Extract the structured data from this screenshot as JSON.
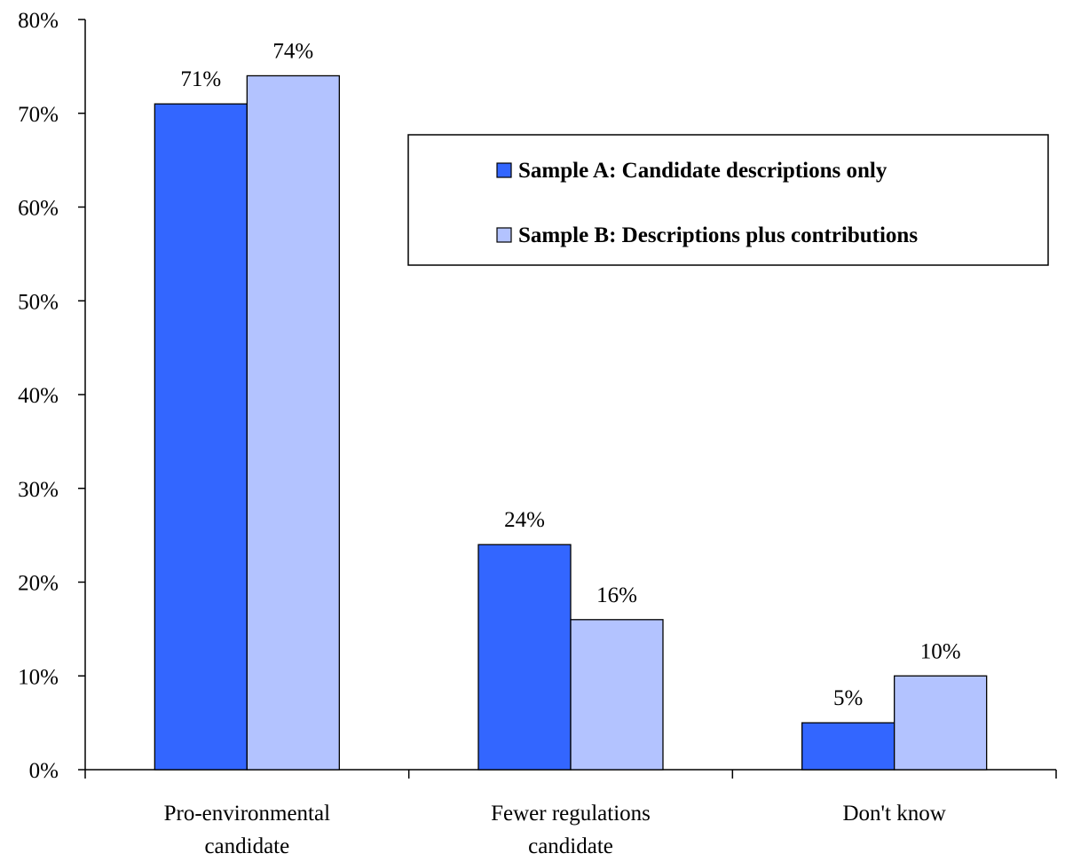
{
  "chart_data": {
    "type": "bar",
    "categories": [
      [
        "Pro-environmental",
        "candidate"
      ],
      [
        "Fewer regulations",
        "candidate"
      ],
      [
        "Don't know"
      ]
    ],
    "series": [
      {
        "name": "Sample A: Candidate descriptions only",
        "values": [
          71,
          24,
          5
        ],
        "labels": [
          "71%",
          "24%",
          "5%"
        ],
        "color": "#3366ff"
      },
      {
        "name": "Sample B: Descriptions plus contributions",
        "values": [
          74,
          16,
          10
        ],
        "labels": [
          "74%",
          "16%",
          "10%"
        ],
        "color": "#b3c3ff"
      }
    ],
    "ylim": [
      0,
      80
    ],
    "yticks": [
      0,
      10,
      20,
      30,
      40,
      50,
      60,
      70,
      80
    ],
    "ytick_labels": [
      "0%",
      "10%",
      "20%",
      "30%",
      "40%",
      "50%",
      "60%",
      "70%",
      "80%"
    ],
    "grid": false,
    "legend_position": "top-right",
    "title": "",
    "xlabel": "",
    "ylabel": ""
  }
}
